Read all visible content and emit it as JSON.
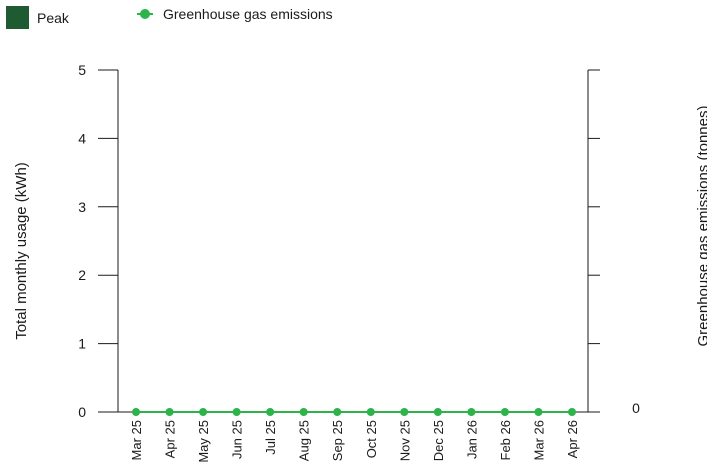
{
  "legend": {
    "peak_label": "Peak",
    "emissions_label": "Greenhouse gas emissions",
    "peak_color": "#1e5a32",
    "emissions_color": "#2db34a"
  },
  "chart_data": {
    "type": "bar",
    "categories": [
      "Mar 25",
      "Apr 25",
      "May 25",
      "Jun 25",
      "Jul 25",
      "Aug 25",
      "Sep 25",
      "Oct 25",
      "Nov 25",
      "Dec 25",
      "Jan 26",
      "Feb 26",
      "Mar 26",
      "Apr 26"
    ],
    "series": [
      {
        "name": "Peak",
        "type": "bar",
        "axis": "left",
        "values": [
          0,
          0,
          0,
          0,
          0,
          0,
          0,
          0,
          0,
          0,
          0,
          0,
          0,
          0
        ]
      },
      {
        "name": "Greenhouse gas emissions",
        "type": "line",
        "axis": "right",
        "values": [
          0,
          0,
          0,
          0,
          0,
          0,
          0,
          0,
          0,
          0,
          0,
          0,
          0,
          0
        ]
      }
    ],
    "ylabel": "Total monthly usage (kWh)",
    "y2label": "Greenhouse gas emissions (tonnes)",
    "ylim": [
      0,
      5
    ],
    "yticks": [
      "0",
      "1",
      "2",
      "3",
      "4",
      "5"
    ],
    "y2ticks": [
      "0"
    ],
    "grid": false,
    "legend_position": "top-left"
  }
}
